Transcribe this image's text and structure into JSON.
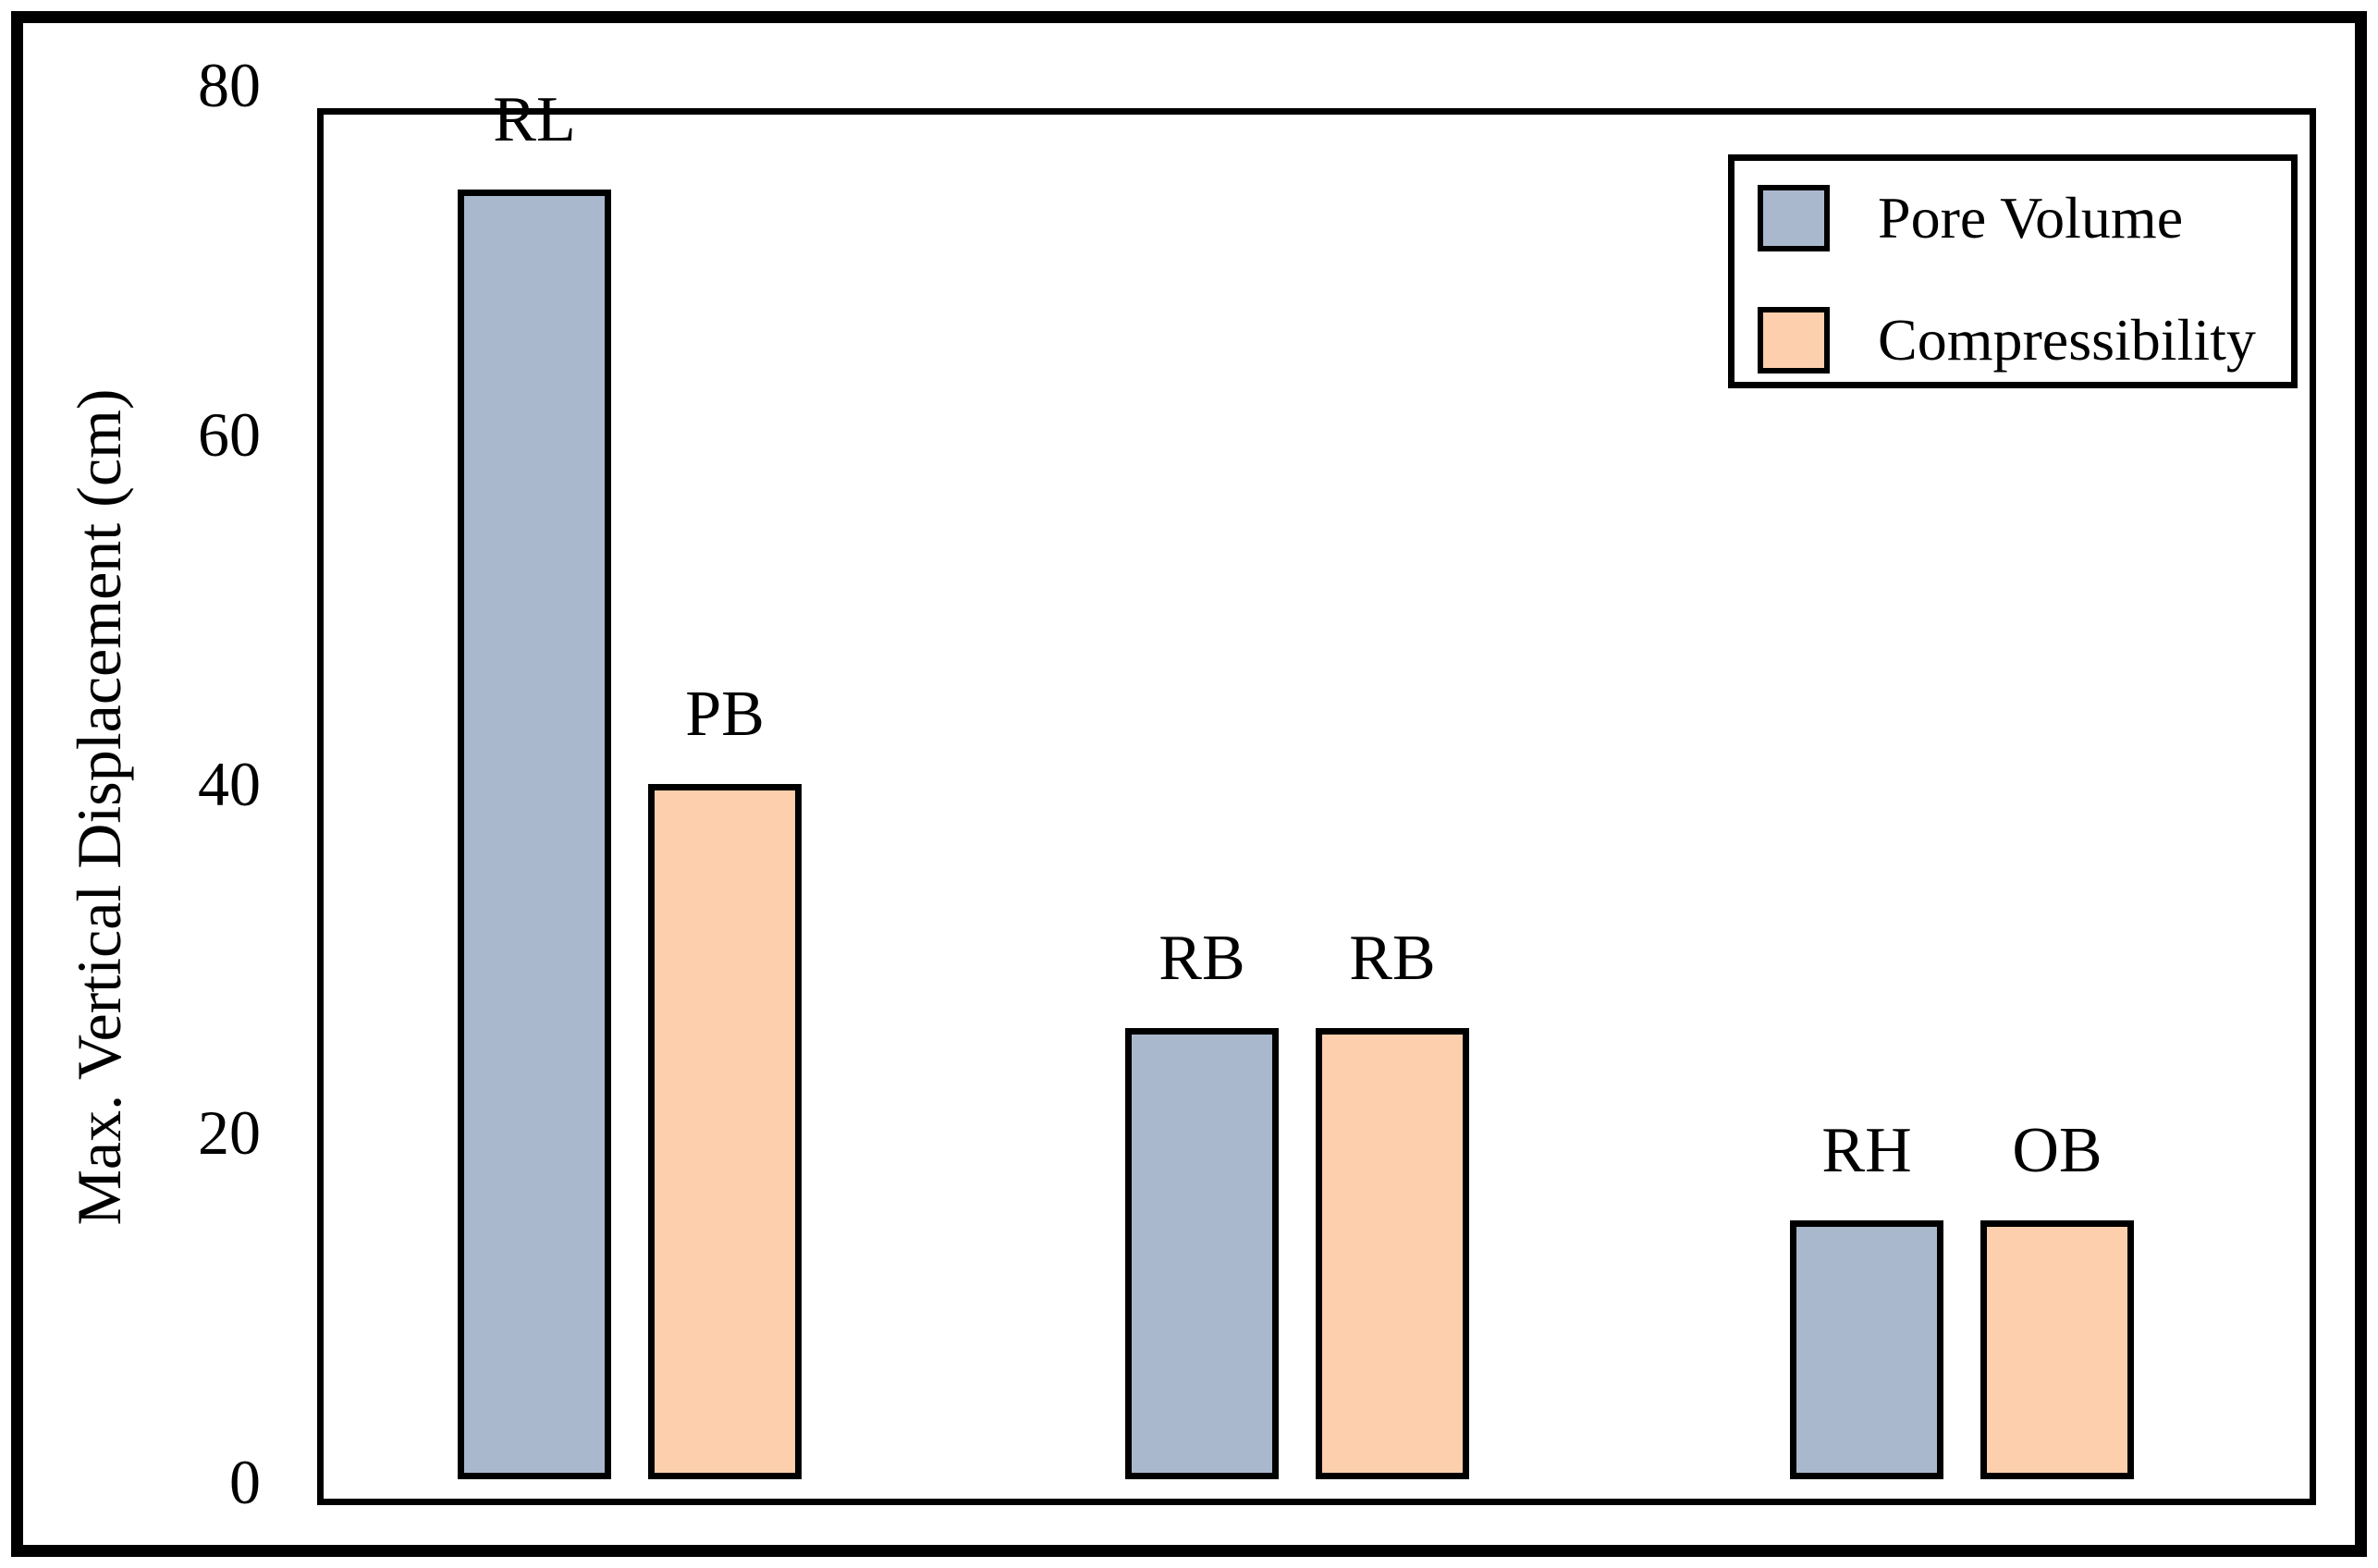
{
  "figure": {
    "background_color": "#ffffff",
    "border_color": "#000000"
  },
  "chart_data": {
    "type": "bar",
    "title": "",
    "xlabel": "",
    "ylabel": "Max. Vertical Displacement (cm)",
    "ylim": [
      0,
      80
    ],
    "yticks": [
      80,
      60,
      40,
      20,
      0
    ],
    "grid": false,
    "legend_position": "inside-top-right",
    "n_groups": 3,
    "series": [
      {
        "name": "Pore Volume",
        "color": "#A9B8CC",
        "bar_labels": [
          "RL",
          "RB",
          "RH"
        ],
        "values": [
          74,
          26,
          15
        ]
      },
      {
        "name": "Compressibility",
        "color": "#FDCFAC",
        "bar_labels": [
          "PB",
          "RB",
          "OB"
        ],
        "values": [
          40,
          26,
          15
        ]
      }
    ]
  }
}
